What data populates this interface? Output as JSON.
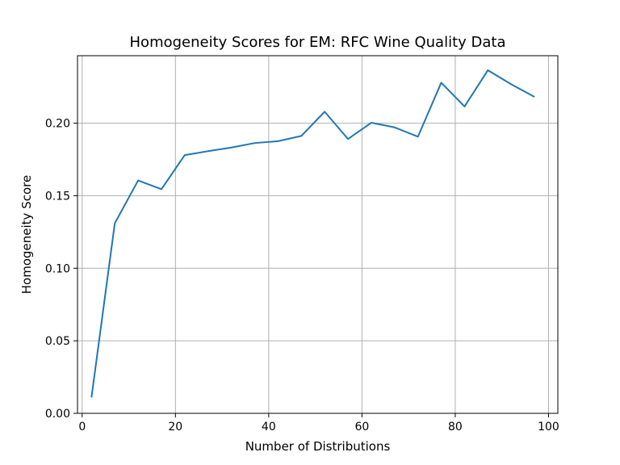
{
  "chart_data": {
    "type": "line",
    "title": "Homogeneity Scores for EM: RFC Wine Quality Data",
    "xlabel": "Number of Distributions",
    "ylabel": "Homogeneity Score",
    "xlim": [
      -1,
      102
    ],
    "ylim": [
      0,
      0.2465
    ],
    "xticks": [
      0,
      20,
      40,
      60,
      80,
      100
    ],
    "xtick_labels": [
      "0",
      "20",
      "40",
      "60",
      "80",
      "100"
    ],
    "yticks": [
      0,
      0.05,
      0.1,
      0.15,
      0.2
    ],
    "ytick_labels": [
      "0.00",
      "0.05",
      "0.10",
      "0.15",
      "0.20"
    ],
    "grid": true,
    "line_color": "#1f77b4",
    "grid_color": "#b0b0b0",
    "series": [
      {
        "x": [
          2,
          7,
          12,
          17,
          22,
          27,
          32,
          37,
          42,
          47,
          52,
          57,
          62,
          67,
          72,
          77,
          82,
          87,
          92,
          97
        ],
        "values": [
          0.011,
          0.131,
          0.1605,
          0.1545,
          0.178,
          0.1807,
          0.1832,
          0.1863,
          0.1876,
          0.1912,
          0.2079,
          0.1891,
          0.2003,
          0.1971,
          0.1907,
          0.2279,
          0.2115,
          0.2365,
          0.2268,
          0.2181
        ]
      }
    ]
  }
}
